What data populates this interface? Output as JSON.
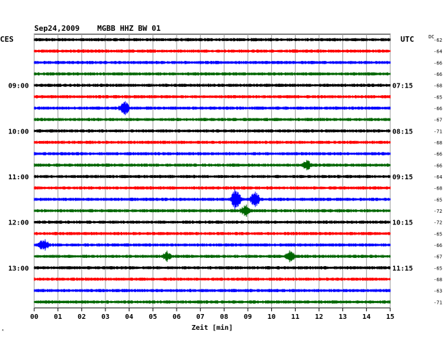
{
  "header": {
    "date": "Sep24,2009",
    "station": "MGBB HHZ BW 01",
    "left_zone": "CES",
    "right_zone": "UTC",
    "dc_label": "DC",
    "corner_mark": "ᴬ"
  },
  "chart_data": {
    "type": "line",
    "title": "Sep24,2009   MGBB HHZ BW 01",
    "xlabel": "Zeit [min]",
    "x_ticks": [
      "00",
      "01",
      "02",
      "03",
      "04",
      "05",
      "06",
      "07",
      "08",
      "09",
      "10",
      "11",
      "12",
      "13",
      "14",
      "15"
    ],
    "xlim": [
      0,
      15
    ],
    "grid": "vertical lines at each minute",
    "trace_colors": [
      "#000000",
      "#ff0000",
      "#0000ff",
      "#006600"
    ],
    "left_hour_labels": [
      {
        "row": 4,
        "label": "09:00"
      },
      {
        "row": 8,
        "label": "10:00"
      },
      {
        "row": 12,
        "label": "11:00"
      },
      {
        "row": 16,
        "label": "12:00"
      },
      {
        "row": 20,
        "label": "13:00"
      }
    ],
    "right_hour_labels": [
      {
        "row": 4,
        "label": "07:15"
      },
      {
        "row": 8,
        "label": "08:15"
      },
      {
        "row": 12,
        "label": "09:15"
      },
      {
        "row": 16,
        "label": "10:15"
      },
      {
        "row": 20,
        "label": "11:15"
      }
    ],
    "dc_offsets": [
      "-62",
      "-64",
      "-66",
      "-66",
      "-68",
      "-65",
      "-66",
      "-67",
      "-71",
      "-68",
      "-66",
      "-66",
      "-64",
      "-68",
      "-65",
      "-72",
      "-72",
      "-65",
      "-66",
      "-67",
      "-65",
      "-68",
      "-63",
      "-71"
    ],
    "events": [
      {
        "row": 6,
        "minute": 3.8,
        "amplitude": 2.2
      },
      {
        "row": 14,
        "minute": 8.5,
        "amplitude": 3.2
      },
      {
        "row": 14,
        "minute": 9.3,
        "amplitude": 2.4
      },
      {
        "row": 15,
        "minute": 8.9,
        "amplitude": 1.7
      },
      {
        "row": 18,
        "minute": 0.4,
        "amplitude": 1.8
      },
      {
        "row": 19,
        "minute": 10.8,
        "amplitude": 1.6
      },
      {
        "row": 19,
        "minute": 5.6,
        "amplitude": 1.3
      },
      {
        "row": 11,
        "minute": 11.5,
        "amplitude": 1.2
      }
    ]
  }
}
